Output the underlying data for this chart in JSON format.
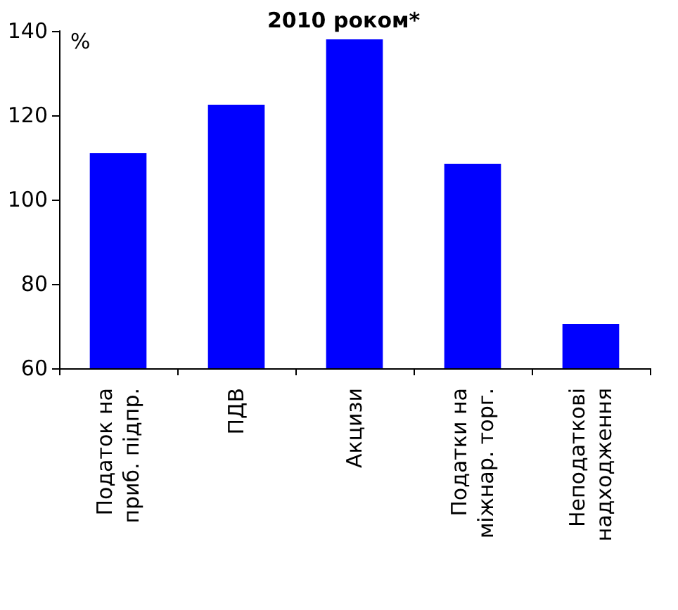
{
  "chart_data": {
    "type": "bar",
    "title": "2010 роком*",
    "ylabel": "%",
    "categories": [
      "Податок на\nприб. підпр.",
      "ПДВ",
      "Акцизи",
      "Податки на\nміжнар. торг.",
      "Неподаткові\nнадходження"
    ],
    "values": [
      111,
      122.5,
      138,
      108.5,
      70.5
    ],
    "color": "#0000ff",
    "ylim": [
      60,
      140
    ],
    "yticks": [
      60,
      80,
      100,
      120,
      140
    ],
    "grid": false
  }
}
